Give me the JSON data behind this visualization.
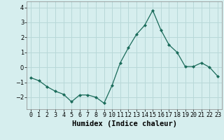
{
  "x": [
    0,
    1,
    2,
    3,
    4,
    5,
    6,
    7,
    8,
    9,
    10,
    11,
    12,
    13,
    14,
    15,
    16,
    17,
    18,
    19,
    20,
    21,
    22,
    23
  ],
  "y": [
    -0.7,
    -0.9,
    -1.3,
    -1.6,
    -1.8,
    -2.3,
    -1.85,
    -1.85,
    -2.0,
    -2.4,
    -1.2,
    0.3,
    1.3,
    2.2,
    2.8,
    3.8,
    2.5,
    1.5,
    1.0,
    0.05,
    0.05,
    0.3,
    0.0,
    -0.6
  ],
  "line_color": "#1a6b5a",
  "marker": "D",
  "marker_size": 2.5,
  "background_color": "#d6eeee",
  "grid_color": "#b8d8d8",
  "xlabel": "Humidex (Indice chaleur)",
  "ylim": [
    -2.8,
    4.4
  ],
  "xlim": [
    -0.5,
    23.5
  ],
  "yticks": [
    -2,
    -1,
    0,
    1,
    2,
    3,
    4
  ],
  "xticks": [
    0,
    1,
    2,
    3,
    4,
    5,
    6,
    7,
    8,
    9,
    10,
    11,
    12,
    13,
    14,
    15,
    16,
    17,
    18,
    19,
    20,
    21,
    22,
    23
  ],
  "xtick_labels": [
    "0",
    "1",
    "2",
    "3",
    "4",
    "5",
    "6",
    "7",
    "8",
    "9",
    "10",
    "11",
    "12",
    "13",
    "14",
    "15",
    "16",
    "17",
    "18",
    "19",
    "20",
    "21",
    "22",
    "23"
  ],
  "tick_fontsize": 6,
  "label_fontsize": 7.5,
  "linewidth": 0.9
}
